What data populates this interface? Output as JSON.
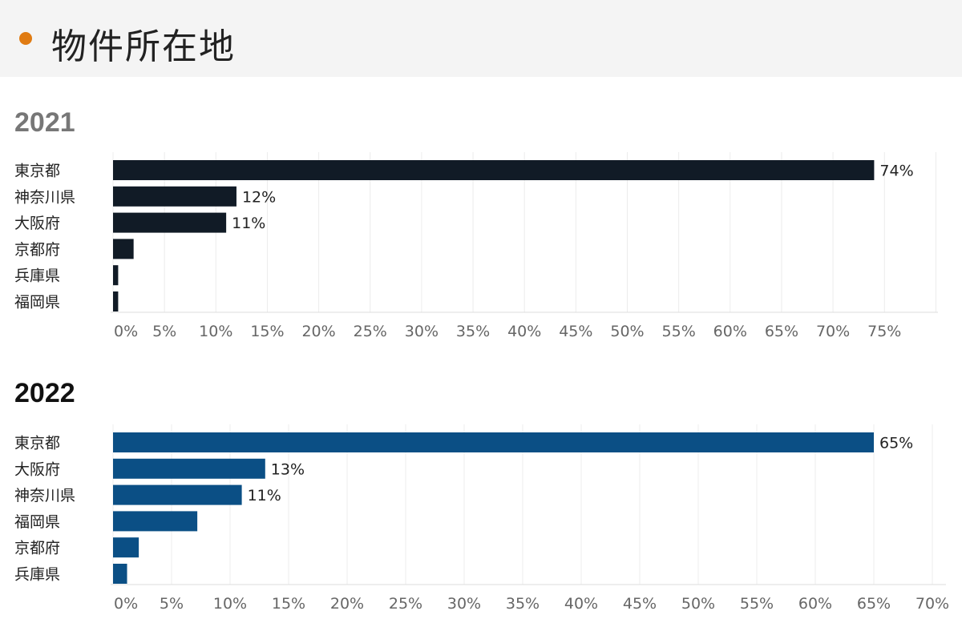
{
  "header": {
    "title": "物件所在地",
    "accent": "#e07b12"
  },
  "chart_data": [
    {
      "type": "bar",
      "orientation": "horizontal",
      "title": "2021",
      "title_color": "#777777",
      "bar_color": "#111b26",
      "categories": [
        "東京都",
        "神奈川県",
        "大阪府",
        "京都府",
        "兵庫県",
        "福岡県"
      ],
      "values": [
        74,
        12,
        11,
        2,
        0.5,
        0.5
      ],
      "data_labels": [
        "74%",
        "12%",
        "11%",
        "",
        "",
        ""
      ],
      "ticks": [
        "0%",
        "5%",
        "10%",
        "15%",
        "20%",
        "25%",
        "30%",
        "35%",
        "40%",
        "45%",
        "50%",
        "55%",
        "60%",
        "65%",
        "70%",
        "75%"
      ],
      "xlim": [
        0,
        80
      ],
      "grid": true
    },
    {
      "type": "bar",
      "orientation": "horizontal",
      "title": "2022",
      "title_color": "#111111",
      "bar_color": "#0b4f85",
      "categories": [
        "東京都",
        "大阪府",
        "神奈川県",
        "福岡県",
        "京都府",
        "兵庫県"
      ],
      "values": [
        65,
        13,
        11,
        7.2,
        2.2,
        1.2
      ],
      "data_labels": [
        "65%",
        "13%",
        "11%",
        "",
        "",
        ""
      ],
      "ticks": [
        "0%",
        "5%",
        "10%",
        "15%",
        "20%",
        "25%",
        "30%",
        "35%",
        "40%",
        "45%",
        "50%",
        "55%",
        "60%",
        "65%",
        "70%"
      ],
      "xlim": [
        0,
        72
      ],
      "grid": true
    }
  ]
}
